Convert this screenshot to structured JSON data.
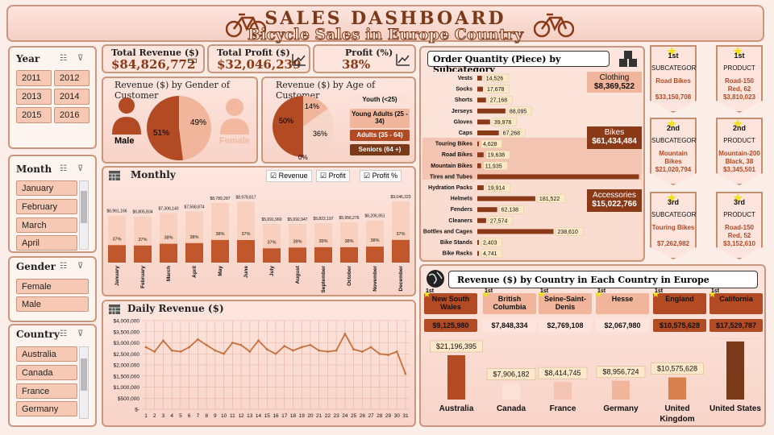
{
  "header": {
    "title": "SALES DASHBOARD",
    "subtitle": "Bicycle Sales in Europe Country"
  },
  "slicers": {
    "year": {
      "title": "Year",
      "items": [
        "2011",
        "2012",
        "2013",
        "2014",
        "2015",
        "2016"
      ]
    },
    "month": {
      "title": "Month",
      "items": [
        "January",
        "February",
        "March",
        "April"
      ]
    },
    "gender": {
      "title": "Gender",
      "items": [
        "Female",
        "Male"
      ]
    },
    "country": {
      "title": "Country",
      "items": [
        "Australia",
        "Canada",
        "France",
        "Germany"
      ]
    }
  },
  "kpis": [
    {
      "label": "Total Revenue ($)",
      "value": "$84,826,772"
    },
    {
      "label": "Total Profit ($)",
      "value": "$32,046,239"
    },
    {
      "label": "Profit (%)",
      "value": "38%"
    }
  ],
  "gender_chart": {
    "title": "Revenue ($) by Gender of Customer",
    "male_label": "Male",
    "female_label": "Female",
    "male_pct": "51%",
    "female_pct": "49%"
  },
  "age_chart": {
    "title": "Revenue ($) by Age of Customer",
    "pcts": [
      "14%",
      "36%",
      "50%",
      "0%"
    ],
    "legend": [
      "Youth (<25)",
      "Young Adults (25 - 34)",
      "Adults (35 - 64)",
      "Seniors (64 +)"
    ]
  },
  "monthly": {
    "title": "Monthly",
    "legend": [
      "Revenue",
      "Profit",
      "Profit %"
    ]
  },
  "daily": {
    "title": "Daily Revenue ($)"
  },
  "order": {
    "title": "Order Quantity (Piece) by Subcategory",
    "categories": [
      {
        "name": "Clothing",
        "value": "$8,369,522"
      },
      {
        "name": "Bikes",
        "value": "$61,434,484"
      },
      {
        "name": "Accessories",
        "value": "$15,022,766"
      }
    ]
  },
  "country_chart": {
    "title": "Revenue ($) by Country in Each Country in Europe",
    "top_states": [
      {
        "rank": "1st",
        "name": "New South Wales",
        "value": "$9,125,980"
      },
      {
        "rank": "1st",
        "name": "British Columbia",
        "value": "$7,848,334"
      },
      {
        "rank": "1st",
        "name": "Seine-Saint-Denis",
        "value": "$2,769,108"
      },
      {
        "rank": "1st",
        "name": "Hesse",
        "value": "$2,067,980"
      },
      {
        "rank": "1st",
        "name": "England",
        "value": "$10,575,628"
      },
      {
        "rank": "1st",
        "name": "California",
        "value": "$17,529,787"
      }
    ]
  },
  "ranks": [
    {
      "rank": "1st",
      "kind": "SUBCATEGORY",
      "name": "Road Bikes",
      "value": "$33,150,708"
    },
    {
      "rank": "1st",
      "kind": "PRODUCT",
      "name": "Road-150 Red, 62",
      "value": "$3,810,023"
    },
    {
      "rank": "2nd",
      "kind": "SUBCATEGORY",
      "name": "Mountain Bikes",
      "value": "$21,020,794"
    },
    {
      "rank": "2nd",
      "kind": "PRODUCT",
      "name": "Mountain-200 Black, 38",
      "value": "$3,345,501"
    },
    {
      "rank": "3rd",
      "kind": "SUBCATEGORY",
      "name": "Touring Bikes",
      "value": "$7,262,982"
    },
    {
      "rank": "3rd",
      "kind": "PRODUCT",
      "name": "Road-150 Red, 52",
      "value": "$3,152,610"
    }
  ],
  "chart_data": [
    {
      "type": "bar",
      "title": "Monthly",
      "categories": [
        "January",
        "February",
        "March",
        "April",
        "May",
        "June",
        "July",
        "August",
        "September",
        "October",
        "November",
        "December"
      ],
      "series": [
        {
          "name": "Revenue",
          "values": [
            6961166,
            6805834,
            7306140,
            7568874,
            8789287,
            8978817,
            5691960,
            5692947,
            5822197,
            5956276,
            6206951,
            9046323
          ],
          "labels": [
            "$6,961,166",
            "$6,805,834",
            "$7,306,140",
            "$7,568,874",
            "$8,789,287",
            "$8,978,817",
            "$5,691,960",
            "$5,692,947",
            "$5,822,197",
            "$5,956,276",
            "$6,206,951",
            "$9,046,323"
          ]
        },
        {
          "name": "Profit %",
          "values": [
            37,
            37,
            38,
            38,
            38,
            37,
            37,
            39,
            39,
            38,
            38,
            37
          ],
          "labels": [
            "37%",
            "37%",
            "38%",
            "38%",
            "38%",
            "37%",
            "37%",
            "39%",
            "39%",
            "38%",
            "38%",
            "37%"
          ]
        }
      ]
    },
    {
      "type": "line",
      "title": "Daily Revenue ($)",
      "x": [
        1,
        2,
        3,
        4,
        5,
        6,
        7,
        8,
        9,
        10,
        11,
        12,
        13,
        14,
        15,
        16,
        17,
        18,
        19,
        20,
        21,
        22,
        23,
        24,
        25,
        26,
        27,
        28,
        29,
        30,
        31
      ],
      "values": [
        2800000,
        2600000,
        3100000,
        2650000,
        2600000,
        2800000,
        3150000,
        2900000,
        2650000,
        2500000,
        3000000,
        2900000,
        2600000,
        3100000,
        2700000,
        2500000,
        2850000,
        2650000,
        2800000,
        2900000,
        2650000,
        2600000,
        2650000,
        3400000,
        2700000,
        2600000,
        2800000,
        2500000,
        2450000,
        2600000,
        1600000
      ],
      "ylim": [
        0,
        4000000
      ],
      "yticks": [
        "$4,000,000",
        "$3,500,000",
        "$3,000,000",
        "$2,500,000",
        "$2,000,000",
        "$1,500,000",
        "$1,000,000",
        "$500,000",
        "$-"
      ]
    },
    {
      "type": "bar",
      "title": "Order Quantity (Piece) by Subcategory",
      "categories": [
        "Vests",
        "Socks",
        "Shorts",
        "Jerseys",
        "Gloves",
        "Caps",
        "Touring Bikes",
        "Road Bikes",
        "Mountain Bikes",
        "Tires and Tubes",
        "Hydration Packs",
        "Helmets",
        "Fenders",
        "Cleaners",
        "Bottles and Cages",
        "Bike Stands",
        "Bike Racks"
      ],
      "values": [
        14526,
        17678,
        27168,
        88095,
        39978,
        67268,
        4628,
        19638,
        11935,
        505889,
        19914,
        181522,
        62138,
        27574,
        238610,
        2403,
        4741
      ],
      "labels": [
        "14,526",
        "17,678",
        "27,168",
        "88,095",
        "39,978",
        "67,268",
        "4,628",
        "19,638",
        "11,935",
        "505,889",
        "19,914",
        "181,522",
        "62,138",
        "27,574",
        "238,610",
        "2,403",
        "4,741"
      ]
    },
    {
      "type": "bar",
      "title": "Revenue ($) by Country in Each Country in Europe",
      "categories": [
        "Australia",
        "Canada",
        "France",
        "Germany",
        "United Kingdom",
        "United States"
      ],
      "values": [
        21196395,
        7906182,
        8414745,
        8956724,
        10575628,
        27777098
      ],
      "labels": [
        "$21,196,395",
        "$7,906,182",
        "$8,414,745",
        "$8,956,724",
        "$10,575,628",
        "$27,777,098"
      ]
    }
  ]
}
